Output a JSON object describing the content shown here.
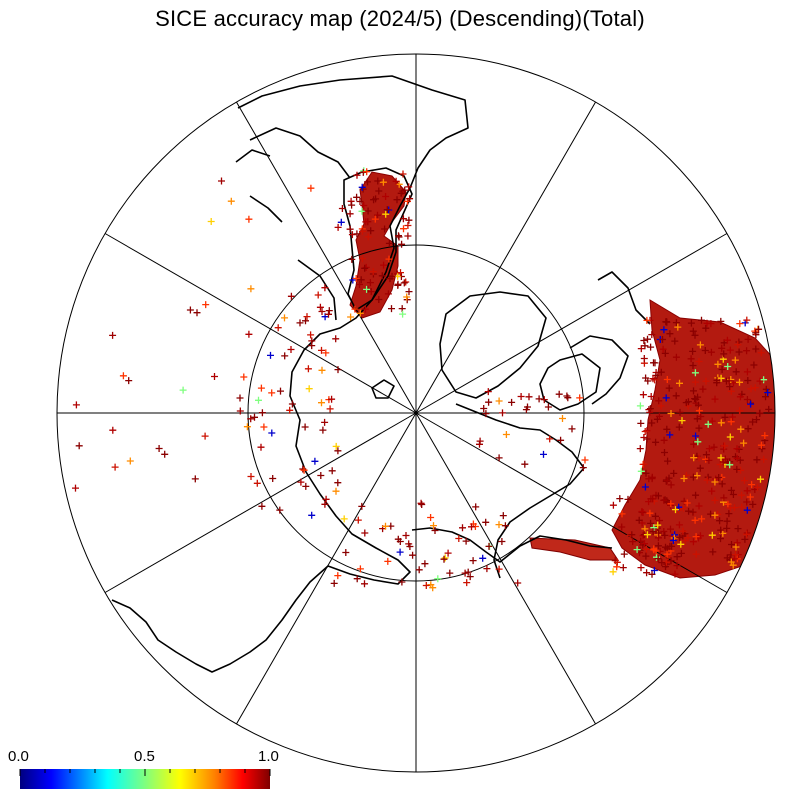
{
  "title": "SICE accuracy map (2024/5) (Descending)(Total)",
  "colorbar": {
    "min_label": "0.0",
    "mid_label": "0.5",
    "max_label": "1.0",
    "stops": [
      "#00007f",
      "#0000ff",
      "#00ffff",
      "#7fff7f",
      "#ffff00",
      "#ff7f00",
      "#ff0000",
      "#7f0000"
    ]
  },
  "map": {
    "projection": "north polar stereographic",
    "meridian_lines": 12,
    "latitude_circle": true,
    "land_outline_color": "#000000",
    "marker": "+",
    "accuracy_scale": [
      0.0,
      1.0
    ]
  }
}
